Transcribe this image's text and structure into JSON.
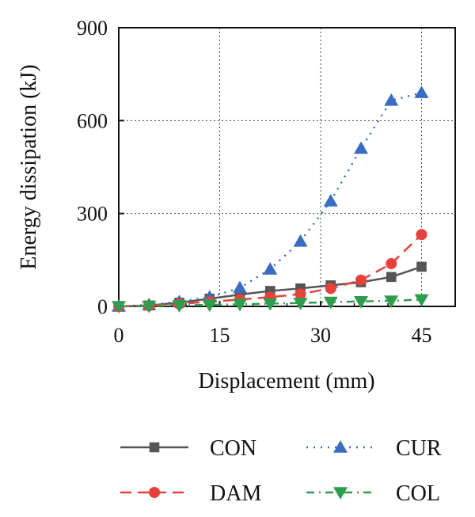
{
  "chart_data": {
    "type": "line",
    "xlabel": "Displacement (mm)",
    "ylabel": "Energy dissipation (kJ)",
    "xlim": [
      0,
      50
    ],
    "ylim": [
      0,
      900
    ],
    "xticks": [
      0,
      15,
      30,
      45
    ],
    "yticks": [
      0,
      300,
      600,
      900
    ],
    "grid": true,
    "legend_position": "bottom",
    "series": [
      {
        "name": "CON",
        "color": "#555555",
        "marker": "square",
        "line": "solid",
        "x": [
          0,
          4.5,
          9,
          13.5,
          18,
          22.5,
          27,
          31.5,
          36,
          40.5,
          45
        ],
        "y": [
          0,
          3,
          12,
          25,
          38,
          50,
          58,
          68,
          78,
          95,
          128
        ]
      },
      {
        "name": "CUR",
        "color": "#3a6cc4",
        "marker": "triangle-up",
        "line": "dotted",
        "x": [
          0,
          4.5,
          9,
          13.5,
          18,
          22.5,
          27,
          31.5,
          36,
          40.5,
          45
        ],
        "y": [
          0,
          5,
          15,
          30,
          60,
          120,
          210,
          340,
          510,
          665,
          690
        ]
      },
      {
        "name": "DAM",
        "color": "#e8413a",
        "marker": "circle",
        "line": "dashed",
        "x": [
          0,
          4.5,
          9,
          13.5,
          18,
          22.5,
          27,
          31.5,
          36,
          40.5,
          45
        ],
        "y": [
          0,
          2,
          8,
          15,
          22,
          30,
          40,
          58,
          85,
          138,
          232
        ]
      },
      {
        "name": "COL",
        "color": "#2e9e4e",
        "marker": "triangle-down",
        "line": "dashdot",
        "x": [
          0,
          4.5,
          9,
          13.5,
          18,
          22.5,
          27,
          31.5,
          36,
          40.5,
          45
        ],
        "y": [
          0,
          1,
          3,
          5,
          7,
          9,
          11,
          14,
          16,
          18,
          22
        ]
      }
    ]
  }
}
